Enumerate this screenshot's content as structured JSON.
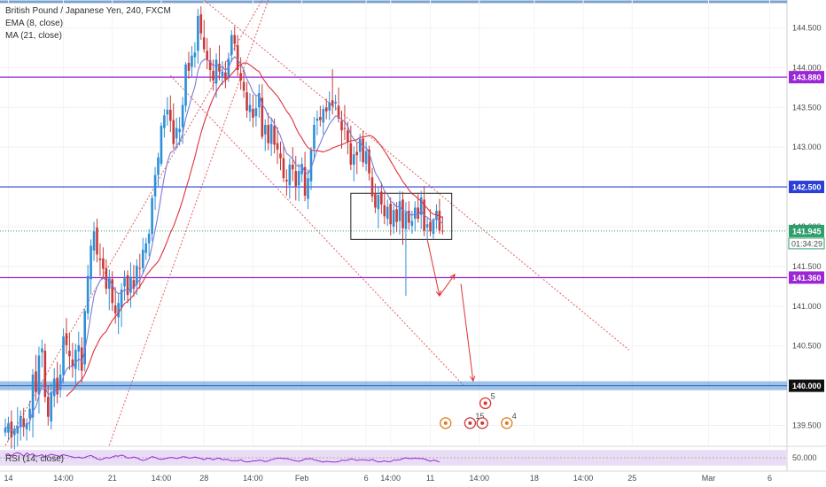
{
  "legend": {
    "symbol": "British Pound / Japanese Yen, 240, FXCM",
    "ema": "EMA (8, close)",
    "ma": "MA (21, close)"
  },
  "rsi_label": "RSI (14, close)",
  "colors": {
    "up": "#2e8fd6",
    "down": "#c93a3a",
    "ema": "#7b7bd6",
    "ma": "#e0303c",
    "resistance": "#9b26d6",
    "support": "#2b3fd6",
    "zone": "#4f8fd6",
    "channel": "#e06060",
    "arrow": "#e03030",
    "rsi_line": "#9b26d6",
    "rsi_band": "#e9dcf5"
  },
  "chart_data": {
    "type": "candlestick",
    "title": "British Pound / Japanese Yen, 240, FXCM",
    "indicators": [
      "EMA (8, close)",
      "MA (21, close)",
      "RSI (14, close)"
    ],
    "y_ticks": [
      "144.500",
      "144.000",
      "143.500",
      "143.000",
      "142.500",
      "142.000",
      "141.500",
      "141.000",
      "140.500",
      "140.000",
      "139.500"
    ],
    "y_tick_values": [
      144.5,
      144.0,
      143.5,
      143.0,
      142.5,
      142.0,
      141.5,
      141.0,
      140.5,
      140.0,
      139.5
    ],
    "ylim": [
      139.25,
      144.85
    ],
    "x_ticks": [
      {
        "label": "14",
        "bar": 1
      },
      {
        "label": "14:00",
        "bar": 19
      },
      {
        "label": "21",
        "bar": 35
      },
      {
        "label": "14:00",
        "bar": 51
      },
      {
        "label": "28",
        "bar": 65
      },
      {
        "label": "14:00",
        "bar": 81
      },
      {
        "label": "Feb",
        "bar": 97
      },
      {
        "label": "6",
        "bar": 118
      },
      {
        "label": "14:00",
        "bar": 126
      },
      {
        "label": "11",
        "bar": 139
      },
      {
        "label": "14:00",
        "bar": 155
      },
      {
        "label": "18",
        "bar": 173
      },
      {
        "label": "14:00",
        "bar": 189
      },
      {
        "label": "25",
        "bar": 205
      },
      {
        "label": "Mar",
        "bar": 230
      },
      {
        "label": "6",
        "bar": 250
      }
    ],
    "last_bar": 142,
    "price_levels": [
      {
        "value": 143.88,
        "label": "143.880",
        "kind": "resistance"
      },
      {
        "value": 142.5,
        "label": "142.500",
        "kind": "support"
      },
      {
        "value": 141.945,
        "label": "141.945",
        "kind": "last"
      },
      {
        "value": 141.36,
        "label": "141.360",
        "kind": "resistance"
      },
      {
        "value": 140.0,
        "label": "140.000",
        "kind": "zone"
      }
    ],
    "countdown": "01:34:29",
    "consolidation_box": {
      "bar_from": 113,
      "bar_to": 146,
      "high": 142.42,
      "low": 141.84
    },
    "channel_lines": [
      {
        "points": [
          [
            0,
            139.25
          ],
          [
            84,
            144.85
          ]
        ],
        "style": "dotted"
      },
      {
        "points": [
          [
            34,
            139.25
          ],
          [
            86,
            144.85
          ]
        ],
        "style": "dotted"
      },
      {
        "points": [
          [
            65,
            144.85
          ],
          [
            204,
            140.45
          ]
        ],
        "style": "dotted"
      },
      {
        "points": [
          [
            54,
            143.9
          ],
          [
            150,
            140.0
          ]
        ],
        "style": "dotted"
      }
    ],
    "arrows": [
      {
        "from": [
          138,
          141.84
        ],
        "to": [
          142,
          141.13
        ]
      },
      {
        "from": [
          142,
          141.13
        ],
        "to": [
          147,
          141.4
        ]
      },
      {
        "from": [
          149,
          141.28
        ],
        "to": [
          153,
          140.06
        ]
      }
    ],
    "event_markers": [
      {
        "bar": 144,
        "value": 139.53,
        "label": "",
        "color": "#e07a20"
      },
      {
        "bar": 152,
        "value": 139.53,
        "label": "15",
        "color": "#c93a3a"
      },
      {
        "bar": 156,
        "value": 139.53,
        "label": "",
        "color": "#c93a3a"
      },
      {
        "bar": 157,
        "value": 139.78,
        "label": "5",
        "color": "#e03030"
      },
      {
        "bar": 164,
        "value": 139.53,
        "label": "4",
        "color": "#e07a20"
      }
    ],
    "ohlc": [
      [
        139.41,
        139.59,
        139.36,
        139.47
      ],
      [
        139.41,
        139.61,
        139.31,
        139.53
      ],
      [
        139.55,
        139.69,
        139.21,
        139.35
      ],
      [
        139.38,
        139.5,
        139.2,
        139.45
      ],
      [
        139.4,
        139.73,
        139.24,
        139.49
      ],
      [
        139.48,
        139.69,
        139.31,
        139.62
      ],
      [
        139.59,
        139.72,
        139.36,
        139.48
      ],
      [
        139.45,
        139.59,
        139.31,
        139.53
      ],
      [
        139.59,
        139.81,
        139.43,
        139.71
      ],
      [
        139.6,
        140.21,
        139.35,
        140.14
      ],
      [
        140.18,
        140.39,
        139.81,
        139.92
      ],
      [
        139.89,
        140.49,
        139.65,
        140.38
      ],
      [
        140.42,
        140.58,
        140.23,
        140.47
      ],
      [
        140.44,
        140.53,
        139.79,
        139.86
      ],
      [
        139.86,
        140.0,
        139.5,
        139.61
      ],
      [
        139.55,
        140.03,
        139.45,
        139.92
      ],
      [
        139.87,
        140.22,
        139.73,
        140.09
      ],
      [
        140.1,
        140.3,
        139.78,
        139.89
      ],
      [
        139.95,
        140.27,
        139.85,
        140.14
      ],
      [
        140.13,
        140.72,
        140.03,
        140.62
      ],
      [
        140.66,
        140.85,
        140.4,
        140.51
      ],
      [
        140.44,
        140.67,
        140.2,
        140.37
      ],
      [
        140.33,
        140.54,
        140.1,
        140.24
      ],
      [
        140.21,
        140.53,
        140.01,
        140.45
      ],
      [
        140.43,
        140.68,
        140.19,
        140.51
      ],
      [
        140.48,
        140.61,
        140.04,
        140.19
      ],
      [
        140.27,
        140.97,
        140.18,
        140.94
      ],
      [
        140.91,
        141.52,
        140.83,
        141.38
      ],
      [
        141.34,
        141.84,
        141.15,
        141.76
      ],
      [
        141.7,
        142.06,
        141.57,
        141.94
      ],
      [
        141.99,
        142.1,
        141.55,
        141.65
      ],
      [
        141.6,
        141.79,
        141.38,
        141.58
      ],
      [
        141.6,
        141.74,
        141.35,
        141.47
      ],
      [
        141.48,
        141.59,
        141.15,
        141.22
      ],
      [
        141.22,
        141.46,
        140.95,
        141.37
      ],
      [
        141.34,
        141.44,
        140.94,
        141.04
      ],
      [
        141.01,
        141.24,
        140.78,
        140.91
      ],
      [
        140.86,
        141.15,
        140.65,
        141.04
      ],
      [
        140.98,
        141.29,
        140.74,
        141.21
      ],
      [
        141.25,
        141.45,
        141.07,
        141.35
      ],
      [
        141.39,
        141.45,
        141.04,
        141.14
      ],
      [
        141.17,
        141.55,
        140.98,
        141.37
      ],
      [
        141.33,
        141.52,
        141.12,
        141.22
      ],
      [
        141.27,
        141.59,
        141.14,
        141.51
      ],
      [
        141.48,
        141.66,
        141.22,
        141.47
      ],
      [
        141.48,
        141.86,
        141.41,
        141.71
      ],
      [
        141.67,
        141.86,
        141.58,
        141.79
      ],
      [
        141.79,
        141.97,
        141.63,
        141.91
      ],
      [
        141.91,
        142.4,
        141.82,
        142.36
      ],
      [
        142.38,
        142.75,
        142.21,
        142.65
      ],
      [
        142.65,
        142.93,
        142.5,
        142.87
      ],
      [
        142.79,
        143.31,
        142.76,
        143.27
      ],
      [
        143.24,
        143.48,
        143.12,
        143.4
      ],
      [
        143.41,
        143.63,
        143.27,
        143.47
      ],
      [
        143.47,
        143.65,
        143.19,
        143.33
      ],
      [
        143.34,
        143.55,
        142.98,
        143.04
      ],
      [
        143.11,
        143.37,
        142.98,
        143.24
      ],
      [
        143.19,
        143.38,
        143.02,
        143.23
      ],
      [
        143.25,
        143.63,
        143.04,
        143.53
      ],
      [
        143.52,
        144.07,
        143.44,
        144.04
      ],
      [
        144.06,
        144.2,
        143.86,
        143.96
      ],
      [
        144.01,
        144.27,
        143.88,
        144.15
      ],
      [
        144.13,
        144.32,
        144.0,
        144.19
      ],
      [
        144.21,
        144.74,
        144.05,
        144.65
      ],
      [
        144.67,
        144.77,
        144.35,
        144.43
      ],
      [
        144.38,
        144.6,
        144.19,
        144.23
      ],
      [
        144.21,
        144.37,
        143.98,
        144.1
      ],
      [
        144.09,
        144.25,
        143.82,
        143.97
      ],
      [
        143.96,
        144.1,
        143.71,
        143.84
      ],
      [
        143.8,
        144.18,
        143.62,
        144.1
      ],
      [
        144.05,
        144.28,
        143.84,
        143.95
      ],
      [
        143.89,
        144.08,
        143.78,
        143.95
      ],
      [
        143.94,
        144.08,
        143.74,
        143.85
      ],
      [
        143.89,
        144.19,
        143.82,
        144.11
      ],
      [
        144.16,
        144.47,
        144.07,
        144.41
      ],
      [
        144.41,
        144.52,
        144.21,
        144.3
      ],
      [
        144.28,
        144.41,
        143.89,
        143.97
      ],
      [
        143.93,
        144.13,
        143.72,
        143.84
      ],
      [
        143.82,
        143.98,
        143.62,
        143.71
      ],
      [
        143.69,
        143.82,
        143.37,
        143.46
      ],
      [
        143.44,
        143.68,
        143.32,
        143.53
      ],
      [
        143.48,
        143.66,
        143.25,
        143.37
      ],
      [
        143.39,
        143.64,
        143.26,
        143.49
      ],
      [
        143.5,
        143.79,
        143.37,
        143.68
      ],
      [
        143.62,
        143.79,
        143.1,
        143.13
      ],
      [
        143.16,
        143.35,
        142.95,
        143.28
      ],
      [
        143.28,
        143.43,
        142.96,
        143.05
      ],
      [
        143.04,
        143.37,
        142.89,
        143.29
      ],
      [
        143.27,
        143.36,
        142.92,
        143.03
      ],
      [
        143.05,
        143.25,
        142.79,
        142.97
      ],
      [
        142.92,
        143.07,
        142.71,
        142.86
      ],
      [
        142.86,
        143.04,
        142.56,
        142.61
      ],
      [
        142.59,
        142.72,
        142.39,
        142.57
      ],
      [
        142.52,
        142.86,
        142.35,
        142.78
      ],
      [
        142.78,
        143.0,
        142.57,
        142.72
      ],
      [
        142.7,
        142.89,
        142.33,
        142.51
      ],
      [
        142.52,
        142.79,
        142.32,
        142.7
      ],
      [
        142.66,
        142.87,
        142.56,
        142.79
      ],
      [
        142.75,
        142.94,
        142.32,
        142.39
      ],
      [
        142.35,
        142.72,
        142.22,
        142.61
      ],
      [
        142.57,
        143.0,
        142.46,
        142.96
      ],
      [
        142.98,
        143.38,
        142.83,
        143.28
      ],
      [
        143.33,
        143.46,
        143.15,
        143.36
      ],
      [
        143.38,
        143.52,
        143.26,
        143.34
      ],
      [
        143.31,
        143.53,
        143.16,
        143.48
      ],
      [
        143.5,
        143.61,
        143.35,
        143.45
      ],
      [
        143.46,
        143.7,
        143.34,
        143.56
      ],
      [
        143.59,
        143.98,
        143.41,
        143.52
      ],
      [
        143.55,
        143.66,
        143.46,
        143.57
      ],
      [
        143.52,
        143.75,
        143.31,
        143.36
      ],
      [
        143.33,
        143.46,
        142.98,
        143.21
      ],
      [
        143.24,
        143.53,
        143.09,
        143.23
      ],
      [
        143.21,
        143.32,
        142.91,
        143.06
      ],
      [
        143.05,
        143.27,
        142.71,
        142.78
      ],
      [
        142.78,
        143.01,
        142.57,
        142.91
      ],
      [
        142.94,
        143.06,
        142.66,
        142.9
      ],
      [
        142.94,
        143.17,
        142.82,
        143.1
      ],
      [
        143.11,
        143.2,
        142.75,
        142.81
      ],
      [
        142.79,
        143.07,
        142.7,
        142.95
      ],
      [
        142.97,
        143.02,
        142.58,
        142.67
      ],
      [
        142.62,
        142.74,
        142.31,
        142.38
      ],
      [
        142.41,
        142.54,
        142.17,
        142.24
      ],
      [
        142.22,
        142.51,
        141.98,
        142.4
      ],
      [
        142.44,
        142.56,
        142.16,
        142.28
      ],
      [
        142.27,
        142.44,
        142.03,
        142.13
      ],
      [
        142.1,
        142.34,
        142.01,
        142.25
      ],
      [
        142.29,
        142.37,
        141.89,
        142.03
      ],
      [
        142.0,
        142.29,
        141.91,
        142.21
      ],
      [
        142.22,
        142.31,
        141.93,
        142.06
      ],
      [
        142.07,
        142.45,
        141.9,
        142.32
      ],
      [
        142.34,
        142.44,
        141.77,
        141.98
      ],
      [
        141.97,
        142.31,
        141.13,
        142.18
      ],
      [
        142.2,
        142.32,
        141.96,
        142.05
      ],
      [
        142.01,
        142.2,
        141.91,
        142.07
      ],
      [
        142.1,
        142.32,
        141.94,
        142.24
      ],
      [
        142.24,
        142.41,
        142.05,
        142.1
      ],
      [
        142.15,
        142.45,
        141.97,
        142.37
      ],
      [
        142.34,
        142.51,
        141.88,
        141.95
      ],
      [
        141.99,
        142.11,
        141.84,
        142.03
      ],
      [
        142.06,
        142.22,
        141.88,
        141.94
      ],
      [
        141.91,
        142.11,
        141.85,
        142.08
      ],
      [
        142.09,
        142.28,
        141.97,
        142.2
      ],
      [
        142.2,
        142.35,
        141.91,
        141.95
      ],
      [
        141.95,
        142.13,
        141.9,
        141.94
      ]
    ],
    "rsi": [
      58,
      60,
      55,
      61,
      63,
      60,
      54,
      62,
      57,
      60,
      54,
      55,
      58,
      52,
      56,
      59,
      57,
      55,
      54,
      58,
      56,
      54,
      52,
      50,
      52,
      49,
      51,
      54,
      56,
      52,
      47,
      45,
      47,
      51,
      49,
      52,
      55,
      54,
      57,
      54,
      49,
      50,
      52,
      50,
      46,
      43,
      45,
      49,
      53,
      51,
      47,
      46,
      47,
      49,
      51,
      50,
      48,
      50,
      53,
      52,
      49,
      50,
      52,
      50,
      48,
      45,
      49,
      48,
      45,
      48,
      49,
      45,
      46,
      45,
      42,
      43,
      42,
      45,
      41,
      39,
      40,
      42,
      42,
      44,
      43,
      40,
      42,
      45,
      47,
      49,
      49,
      48,
      48,
      46,
      44,
      42,
      41,
      43,
      47,
      47,
      48,
      45,
      43,
      41,
      39,
      41,
      40,
      39,
      39,
      40,
      44,
      43,
      44,
      47,
      46,
      43,
      45,
      45,
      44,
      43,
      46,
      42,
      39,
      40,
      42,
      40,
      40,
      44,
      44,
      45,
      48,
      50,
      48,
      48,
      49,
      48,
      48,
      47,
      44,
      41,
      44,
      42,
      39
    ],
    "rsi_ticks": [
      "50.000"
    ]
  }
}
